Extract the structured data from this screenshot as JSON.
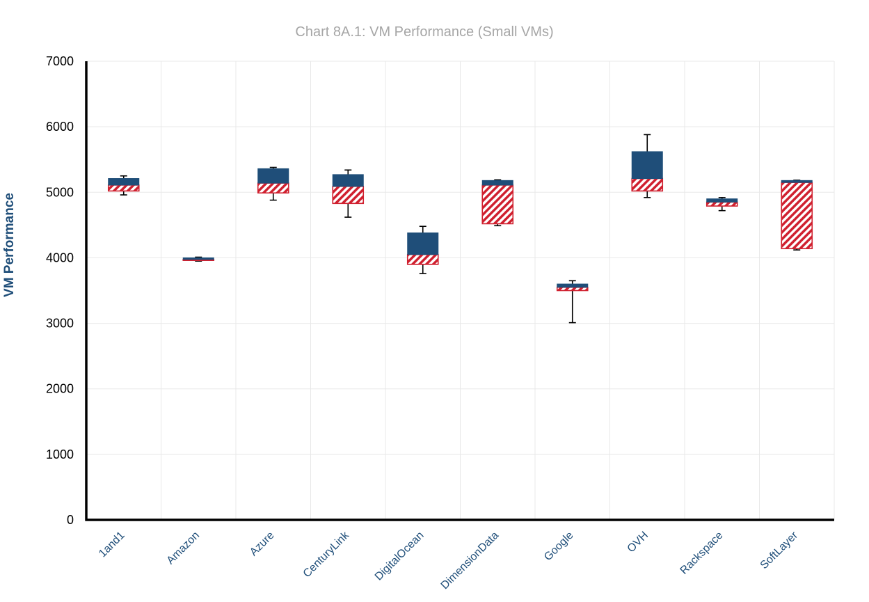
{
  "chart_data": {
    "type": "box",
    "title": "Chart 8A.1: VM Performance (Small VMs)",
    "xlabel": "",
    "ylabel": "VM Performance",
    "ylim": [
      0,
      7000
    ],
    "yticks": [
      0,
      1000,
      2000,
      3000,
      4000,
      5000,
      6000,
      7000
    ],
    "grid": true,
    "legend": "none",
    "colors": {
      "upper_box": "#1f4e79",
      "lower_box_hatch": "#d0202f",
      "whisker": "#000000",
      "title": "#a6a6a6",
      "xtick": "#1f4e79"
    },
    "categories": [
      "1and1",
      "Amazon",
      "Azure",
      "CenturyLink",
      "DigitalOcean",
      "DimensionData",
      "Google",
      "OVH",
      "Rackspace",
      "SoftLayer"
    ],
    "series": [
      {
        "min": 4960,
        "q1": 5020,
        "median": 5110,
        "q3": 5210,
        "max": 5250
      },
      {
        "min": 3950,
        "q1": 3960,
        "median": 3975,
        "q3": 4000,
        "max": 4010
      },
      {
        "min": 4880,
        "q1": 4990,
        "median": 5140,
        "q3": 5360,
        "max": 5380
      },
      {
        "min": 4620,
        "q1": 4830,
        "median": 5090,
        "q3": 5270,
        "max": 5340
      },
      {
        "min": 3760,
        "q1": 3900,
        "median": 4050,
        "q3": 4380,
        "max": 4480
      },
      {
        "min": 4490,
        "q1": 4520,
        "median": 5110,
        "q3": 5180,
        "max": 5190
      },
      {
        "min": 3010,
        "q1": 3500,
        "median": 3550,
        "q3": 3600,
        "max": 3650
      },
      {
        "min": 4920,
        "q1": 5020,
        "median": 5210,
        "q3": 5620,
        "max": 5880
      },
      {
        "min": 4720,
        "q1": 4790,
        "median": 4850,
        "q3": 4900,
        "max": 4920
      },
      {
        "min": 4120,
        "q1": 4140,
        "median": 5150,
        "q3": 5180,
        "max": 5185
      }
    ]
  }
}
